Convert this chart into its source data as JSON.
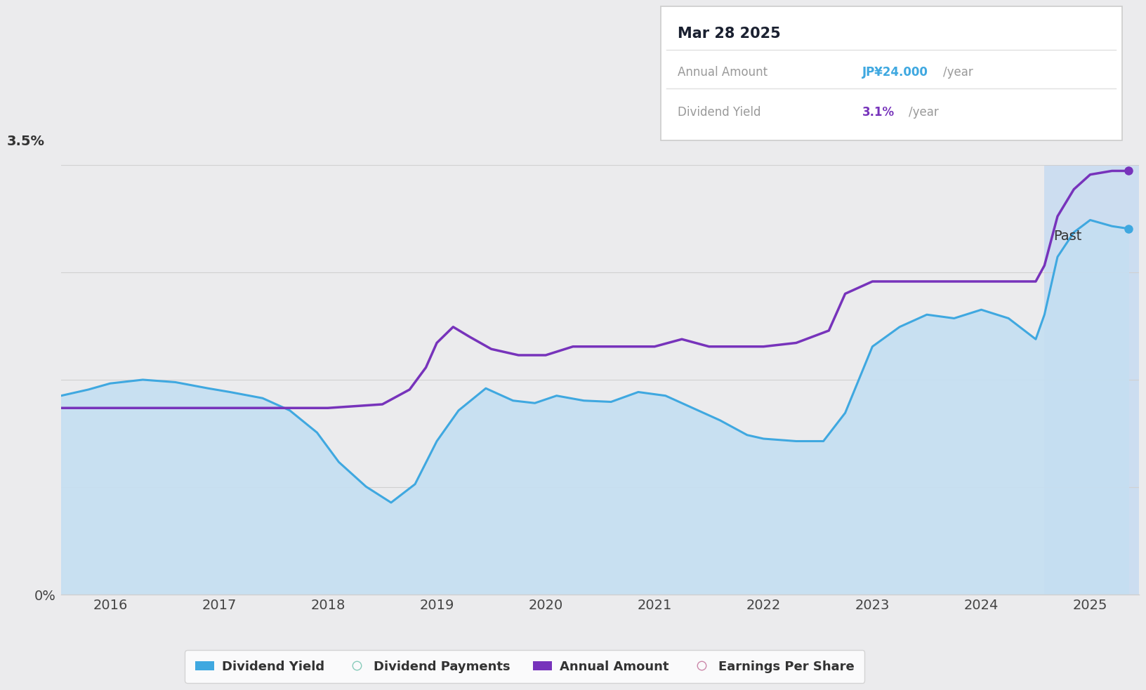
{
  "background_color": "#ebebed",
  "plot_bg_color": "#ebebed",
  "ylim": [
    0,
    3.5
  ],
  "xlim_min": 2015.55,
  "xlim_max": 2025.45,
  "past_start": 2024.58,
  "past_color": "#ccddf0",
  "past_label": "Past",
  "dividend_yield_color": "#3fa8e0",
  "dividend_yield_fill_color": "#c5dff2",
  "annual_amount_color": "#7733bb",
  "tooltip_title": "Mar 28 2025",
  "tooltip_annual_label": "Annual Amount",
  "tooltip_annual_value": "JP¥24.000",
  "tooltip_annual_suffix": "/year",
  "tooltip_yield_label": "Dividend Yield",
  "tooltip_yield_value": "3.1%",
  "tooltip_yield_suffix": "/year",
  "tooltip_annual_color": "#3fa8e0",
  "tooltip_yield_color": "#7733bb",
  "dividend_yield_x": [
    2015.55,
    2015.8,
    2016.0,
    2016.3,
    2016.6,
    2016.9,
    2017.1,
    2017.4,
    2017.65,
    2017.9,
    2018.1,
    2018.35,
    2018.58,
    2018.8,
    2019.0,
    2019.2,
    2019.45,
    2019.7,
    2019.9,
    2020.1,
    2020.35,
    2020.6,
    2020.85,
    2021.1,
    2021.35,
    2021.6,
    2021.85,
    2022.0,
    2022.3,
    2022.55,
    2022.75,
    2023.0,
    2023.25,
    2023.5,
    2023.75,
    2024.0,
    2024.25,
    2024.5,
    2024.58,
    2024.7,
    2024.85,
    2025.0,
    2025.2,
    2025.35
  ],
  "dividend_yield_y": [
    1.62,
    1.67,
    1.72,
    1.75,
    1.73,
    1.68,
    1.65,
    1.6,
    1.5,
    1.32,
    1.08,
    0.88,
    0.75,
    0.9,
    1.25,
    1.5,
    1.68,
    1.58,
    1.56,
    1.62,
    1.58,
    1.57,
    1.65,
    1.62,
    1.52,
    1.42,
    1.3,
    1.27,
    1.25,
    1.25,
    1.48,
    2.02,
    2.18,
    2.28,
    2.25,
    2.32,
    2.25,
    2.08,
    2.28,
    2.75,
    2.95,
    3.05,
    3.0,
    2.98
  ],
  "annual_amount_x": [
    2015.55,
    2016.0,
    2016.5,
    2017.0,
    2017.5,
    2018.0,
    2018.5,
    2018.75,
    2018.9,
    2019.0,
    2019.15,
    2019.3,
    2019.5,
    2019.75,
    2020.0,
    2020.25,
    2020.5,
    2021.0,
    2021.25,
    2021.5,
    2022.0,
    2022.3,
    2022.6,
    2022.75,
    2023.0,
    2023.5,
    2024.0,
    2024.5,
    2024.58,
    2024.7,
    2024.85,
    2025.0,
    2025.2,
    2025.35
  ],
  "annual_amount_y": [
    1.52,
    1.52,
    1.52,
    1.52,
    1.52,
    1.52,
    1.55,
    1.67,
    1.85,
    2.05,
    2.18,
    2.1,
    2.0,
    1.95,
    1.95,
    2.02,
    2.02,
    2.02,
    2.08,
    2.02,
    2.02,
    2.05,
    2.15,
    2.45,
    2.55,
    2.55,
    2.55,
    2.55,
    2.68,
    3.08,
    3.3,
    3.42,
    3.45,
    3.45
  ],
  "grid_color": "#d0d0d0",
  "grid_y_values": [
    0.0,
    0.875,
    1.75,
    2.625,
    3.5
  ],
  "xticks": [
    2016,
    2017,
    2018,
    2019,
    2020,
    2021,
    2022,
    2023,
    2024,
    2025
  ],
  "legend_items": [
    {
      "label": "Dividend Yield",
      "color": "#3fa8e0",
      "filled": true
    },
    {
      "label": "Dividend Payments",
      "color": "#88ccbb",
      "filled": false
    },
    {
      "label": "Annual Amount",
      "color": "#7733bb",
      "filled": true
    },
    {
      "label": "Earnings Per Share",
      "color": "#cc88aa",
      "filled": false
    }
  ]
}
